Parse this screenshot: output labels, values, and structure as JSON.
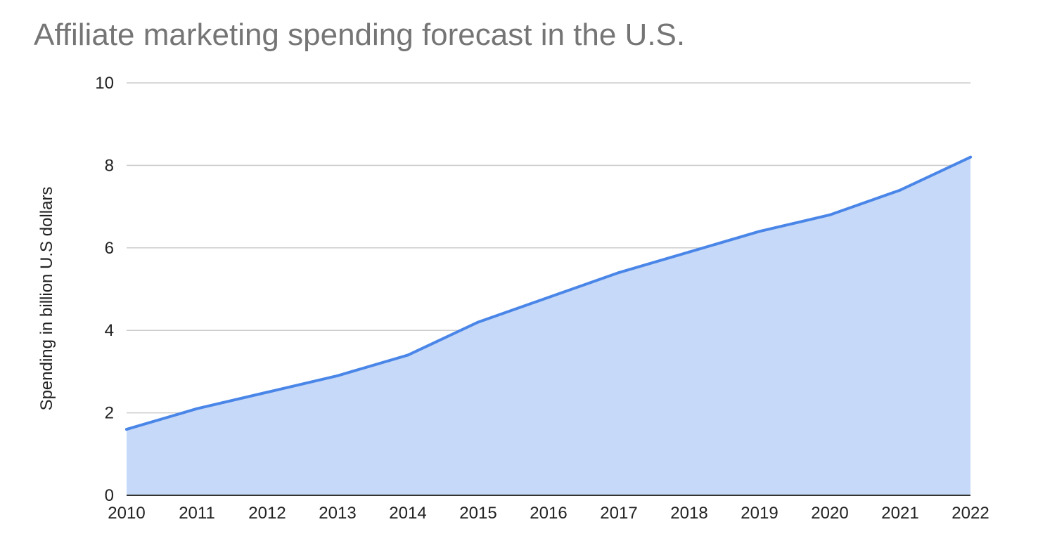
{
  "colors": {
    "line": "#4a86e8",
    "area": "#c6d9f8",
    "grid": "#cccccc",
    "title": "#757575",
    "text": "#222222"
  },
  "chart_data": {
    "type": "area",
    "title": "Affiliate marketing spending forecast in the U.S.",
    "xlabel": "",
    "ylabel": "Spending in billion U.S dollars",
    "categories": [
      "2010",
      "2011",
      "2012",
      "2013",
      "2014",
      "2015",
      "2016",
      "2017",
      "2018",
      "2019",
      "2020",
      "2021",
      "2022"
    ],
    "series": [
      {
        "name": "Spending in billion U.S dollars",
        "values": [
          1.6,
          2.1,
          2.5,
          2.9,
          3.4,
          4.2,
          4.8,
          5.4,
          5.9,
          6.4,
          6.8,
          7.4,
          8.2
        ]
      }
    ],
    "ylim": [
      0,
      10
    ],
    "yticks": [
      "0",
      "2",
      "4",
      "6",
      "8",
      "10"
    ],
    "grid": true,
    "legend": "none"
  }
}
